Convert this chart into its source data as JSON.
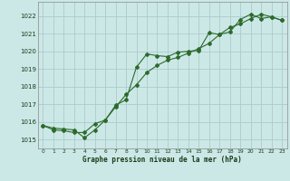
{
  "title": "Graphe pression niveau de la mer (hPa)",
  "background_color": "#cce8e6",
  "grid_color": "#aacccc",
  "line_color": "#2d6a2d",
  "xlim": [
    -0.5,
    23.5
  ],
  "ylim": [
    1014.5,
    1022.8
  ],
  "yticks": [
    1015,
    1016,
    1017,
    1018,
    1019,
    1020,
    1021,
    1022
  ],
  "xticks": [
    0,
    1,
    2,
    3,
    4,
    5,
    6,
    7,
    8,
    9,
    10,
    11,
    12,
    13,
    14,
    15,
    16,
    17,
    18,
    19,
    20,
    21,
    22,
    23
  ],
  "series1_x": [
    0,
    1,
    2,
    3,
    4,
    5,
    6,
    7,
    8,
    9,
    10,
    11,
    12,
    13,
    14,
    15,
    16,
    17,
    18,
    19,
    20,
    21,
    22,
    23
  ],
  "series1_y": [
    1015.8,
    1015.65,
    1015.6,
    1015.55,
    1015.1,
    1015.55,
    1016.1,
    1016.95,
    1017.25,
    1019.1,
    1019.85,
    1019.75,
    1019.7,
    1019.95,
    1020.0,
    1020.05,
    1021.05,
    1020.95,
    1021.1,
    1021.8,
    1022.1,
    1021.85,
    1021.95,
    1021.75
  ],
  "series2_x": [
    0,
    1,
    2,
    3,
    4,
    5,
    6,
    7,
    8,
    9,
    10,
    11,
    12,
    13,
    14,
    15,
    16,
    17,
    18,
    19,
    20,
    21,
    22,
    23
  ],
  "series2_y": [
    1015.8,
    1015.55,
    1015.5,
    1015.4,
    1015.4,
    1015.9,
    1016.1,
    1016.85,
    1017.55,
    1018.1,
    1018.8,
    1019.2,
    1019.5,
    1019.65,
    1019.9,
    1020.15,
    1020.45,
    1020.95,
    1021.35,
    1021.55,
    1021.85,
    1022.1,
    1021.95,
    1021.75
  ]
}
